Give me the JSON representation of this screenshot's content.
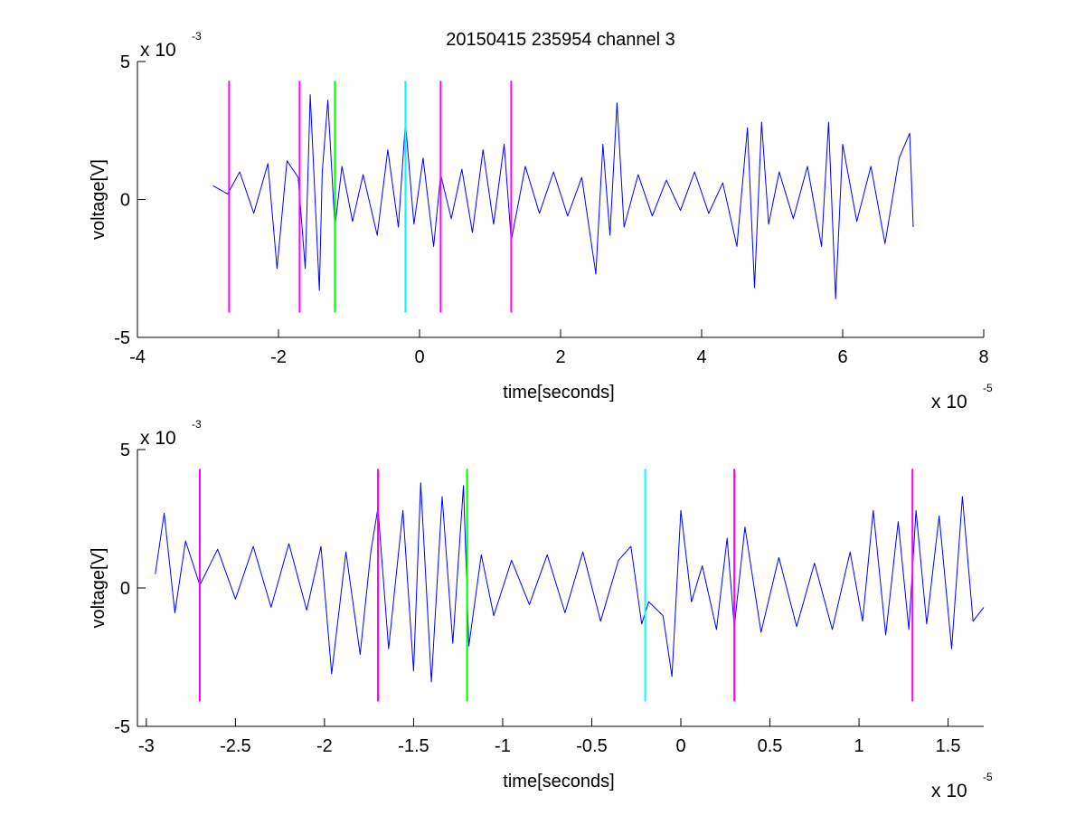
{
  "figure_title": "20150415 235954 channel 3",
  "chart_data": [
    {
      "type": "line",
      "title": "20150415 235954 channel 3",
      "xlabel": "time[seconds]",
      "ylabel": "voltage[V]",
      "x_multiplier": {
        "base": "x 10",
        "exponent": "-5"
      },
      "y_multiplier": {
        "base": "x 10",
        "exponent": "-3"
      },
      "xlim": [
        -4,
        8
      ],
      "ylim": [
        -5,
        5
      ],
      "x_ticks": [
        -4,
        -2,
        0,
        2,
        4,
        6,
        8
      ],
      "x_tick_labels": [
        "-4",
        "-2",
        "0",
        "2",
        "4",
        "6",
        "8"
      ],
      "y_ticks": [
        -5,
        0,
        5
      ],
      "y_tick_labels": [
        "-5",
        "0",
        "5"
      ],
      "grid": false,
      "series": [
        {
          "color": "#0000ff",
          "x": [
            -2.93,
            -2.72,
            -2.55,
            -2.35,
            -2.15,
            -2.02,
            -1.88,
            -1.72,
            -1.62,
            -1.55,
            -1.42,
            -1.38,
            -1.3,
            -1.2,
            -1.1,
            -0.95,
            -0.8,
            -0.6,
            -0.45,
            -0.3,
            -0.2,
            -0.08,
            0.05,
            0.2,
            0.3,
            0.45,
            0.6,
            0.75,
            0.9,
            1.05,
            1.2,
            1.3,
            1.5,
            1.7,
            1.9,
            2.1,
            2.3,
            2.5,
            2.6,
            2.7,
            2.8,
            2.9,
            3.1,
            3.3,
            3.5,
            3.7,
            3.9,
            4.1,
            4.3,
            4.5,
            4.65,
            4.75,
            4.85,
            4.95,
            5.1,
            5.3,
            5.5,
            5.7,
            5.8,
            5.9,
            6.0,
            6.2,
            6.4,
            6.6,
            6.8,
            6.95,
            7.0
          ],
          "y": [
            0.5,
            0.2,
            1.0,
            -0.5,
            1.3,
            -2.5,
            1.4,
            0.8,
            -2.5,
            3.8,
            -3.3,
            1.0,
            3.6,
            -1.0,
            1.2,
            -0.8,
            0.9,
            -1.3,
            1.8,
            -1.0,
            2.8,
            -0.9,
            1.5,
            -1.7,
            0.9,
            -0.7,
            1.1,
            -1.2,
            1.8,
            -0.9,
            2.0,
            -1.5,
            1.2,
            -0.5,
            1.0,
            -0.6,
            0.8,
            -2.7,
            2.0,
            -1.3,
            3.5,
            -1.0,
            0.9,
            -0.6,
            0.7,
            -0.4,
            1.0,
            -0.5,
            0.6,
            -1.7,
            2.6,
            -3.2,
            2.8,
            -0.9,
            1.0,
            -0.7,
            1.2,
            -1.7,
            2.8,
            -3.6,
            2.0,
            -0.8,
            1.2,
            -1.6,
            1.5,
            2.4,
            -1.0
          ]
        }
      ],
      "markers": [
        {
          "x": -2.7,
          "color": "#ff00ff"
        },
        {
          "x": -1.7,
          "color": "#ff00ff"
        },
        {
          "x": -1.2,
          "color": "#00ff00"
        },
        {
          "x": -0.2,
          "color": "#00ffff"
        },
        {
          "x": 0.3,
          "color": "#ff00ff"
        },
        {
          "x": 1.3,
          "color": "#ff00ff"
        }
      ],
      "marker_ylim": [
        -4.1,
        4.3
      ]
    },
    {
      "type": "line",
      "title": "",
      "xlabel": "time[seconds]",
      "ylabel": "voltage[V]",
      "x_multiplier": {
        "base": "x 10",
        "exponent": "-5"
      },
      "y_multiplier": {
        "base": "x 10",
        "exponent": "-3"
      },
      "xlim": [
        -3.05,
        1.7
      ],
      "ylim": [
        -5,
        5
      ],
      "x_ticks": [
        -3,
        -2.5,
        -2,
        -1.5,
        -1,
        -0.5,
        0,
        0.5,
        1,
        1.5
      ],
      "x_tick_labels": [
        "-3",
        "-2.5",
        "-2",
        "-1.5",
        "-1",
        "-0.5",
        "0",
        "0.5",
        "1",
        "1.5"
      ],
      "y_ticks": [
        -5,
        0,
        5
      ],
      "y_tick_labels": [
        "-5",
        "0",
        "5"
      ],
      "grid": false,
      "series": [
        {
          "color": "#0000ff",
          "x": [
            -2.95,
            -2.9,
            -2.84,
            -2.78,
            -2.7,
            -2.6,
            -2.5,
            -2.4,
            -2.3,
            -2.2,
            -2.1,
            -2.02,
            -1.96,
            -1.88,
            -1.8,
            -1.74,
            -1.7,
            -1.64,
            -1.56,
            -1.5,
            -1.46,
            -1.4,
            -1.34,
            -1.28,
            -1.22,
            -1.19,
            -1.12,
            -1.05,
            -0.95,
            -0.85,
            -0.75,
            -0.65,
            -0.55,
            -0.45,
            -0.35,
            -0.28,
            -0.22,
            -0.18,
            -0.1,
            -0.05,
            0.0,
            0.06,
            0.12,
            0.2,
            0.26,
            0.3,
            0.36,
            0.45,
            0.55,
            0.65,
            0.75,
            0.85,
            0.95,
            1.02,
            1.08,
            1.15,
            1.22,
            1.28,
            1.32,
            1.38,
            1.45,
            1.52,
            1.58,
            1.64,
            1.7
          ],
          "y": [
            0.5,
            2.7,
            -0.9,
            1.7,
            0.1,
            1.4,
            -0.4,
            1.5,
            -0.7,
            1.6,
            -0.8,
            1.5,
            -3.1,
            1.3,
            -2.4,
            1.3,
            2.9,
            -2.2,
            2.8,
            -3.0,
            3.8,
            -3.4,
            3.3,
            -2.0,
            3.7,
            -2.1,
            1.2,
            -1.0,
            1.0,
            -0.6,
            1.2,
            -0.9,
            1.3,
            -1.2,
            1.0,
            1.5,
            -1.3,
            -0.5,
            -1.0,
            -3.2,
            2.8,
            -0.5,
            0.8,
            -1.5,
            1.8,
            -1.4,
            2.2,
            -1.6,
            1.1,
            -1.4,
            0.9,
            -1.5,
            1.3,
            -1.2,
            2.8,
            -1.7,
            2.4,
            -1.5,
            2.8,
            -1.3,
            2.6,
            -2.2,
            3.3,
            -1.2,
            -0.7
          ]
        }
      ],
      "markers": [
        {
          "x": -2.7,
          "color": "#ff00ff"
        },
        {
          "x": -1.7,
          "color": "#ff00ff"
        },
        {
          "x": -1.2,
          "color": "#00ff00"
        },
        {
          "x": -0.2,
          "color": "#00ffff"
        },
        {
          "x": 0.3,
          "color": "#ff00ff"
        },
        {
          "x": 1.3,
          "color": "#ff00ff"
        }
      ],
      "marker_ylim": [
        -4.1,
        4.3
      ]
    }
  ]
}
